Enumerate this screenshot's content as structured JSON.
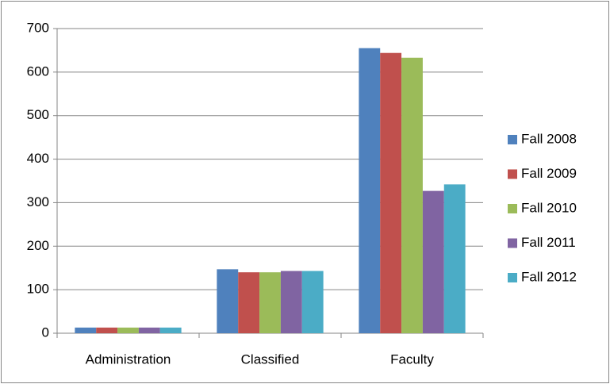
{
  "chart_data": {
    "type": "bar",
    "categories": [
      "Administration",
      "Classified",
      "Faculty"
    ],
    "series": [
      {
        "name": "Fall 2008",
        "color": "#4f81bd",
        "values": [
          13,
          147,
          655
        ]
      },
      {
        "name": "Fall 2009",
        "color": "#c0504d",
        "values": [
          13,
          140,
          644
        ]
      },
      {
        "name": "Fall 2010",
        "color": "#9bbb59",
        "values": [
          13,
          140,
          633
        ]
      },
      {
        "name": "Fall 2011",
        "color": "#8064a2",
        "values": [
          13,
          143,
          327
        ]
      },
      {
        "name": "Fall 2012",
        "color": "#4bacc6",
        "values": [
          13,
          143,
          342
        ]
      }
    ],
    "ylim": [
      0,
      700
    ],
    "yticks": [
      0,
      100,
      200,
      300,
      400,
      500,
      600,
      700
    ],
    "grid": true,
    "legend": "right"
  }
}
